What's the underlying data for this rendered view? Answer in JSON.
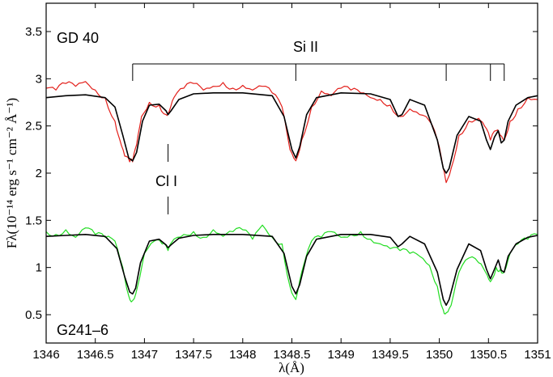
{
  "chart_data": {
    "type": "line",
    "xlabel": "λ(Å)",
    "ylabel": "Fλ(10⁻¹⁴ erg s⁻¹ cm⁻² Å⁻¹)",
    "xlim": [
      1346,
      1351
    ],
    "ylim": [
      0.2,
      3.8
    ],
    "xticks": [
      "1346",
      "1346.5",
      "1347",
      "1347.5",
      "1348",
      "1348.5",
      "1349",
      "1349.5",
      "1350",
      "1350.5",
      "1351"
    ],
    "yticks": [
      "0.5",
      "1",
      "1.5",
      "2",
      "2.5",
      "3",
      "3.5"
    ],
    "grid": false,
    "annotations": {
      "top_star": "GD 40",
      "bottom_star": "G241–6",
      "si_label": "Si II",
      "cl_label": "Cl I"
    },
    "si_lines": [
      1346.88,
      1348.54,
      1350.07,
      1350.52,
      1350.66
    ],
    "cl_line": 1347.24,
    "series": [
      {
        "color": "#e3201b",
        "style": "observed",
        "x": [
          1346.0,
          1346.1,
          1346.2,
          1346.3,
          1346.4,
          1346.5,
          1346.6,
          1346.7,
          1346.75,
          1346.8,
          1346.85,
          1346.88,
          1346.92,
          1346.97,
          1347.05,
          1347.15,
          1347.22,
          1347.25,
          1347.3,
          1347.4,
          1347.5,
          1347.6,
          1347.7,
          1347.8,
          1347.9,
          1348.0,
          1348.1,
          1348.2,
          1348.3,
          1348.4,
          1348.48,
          1348.54,
          1348.6,
          1348.7,
          1348.8,
          1348.9,
          1349.0,
          1349.1,
          1349.2,
          1349.3,
          1349.4,
          1349.5,
          1349.6,
          1349.7,
          1349.8,
          1349.9,
          1349.98,
          1350.04,
          1350.07,
          1350.12,
          1350.2,
          1350.3,
          1350.4,
          1350.46,
          1350.52,
          1350.58,
          1350.62,
          1350.66,
          1350.72,
          1350.8,
          1350.9,
          1351.0
        ],
        "y": [
          2.9,
          2.88,
          2.95,
          2.92,
          2.97,
          2.88,
          2.8,
          2.55,
          2.35,
          2.18,
          2.12,
          2.12,
          2.3,
          2.6,
          2.75,
          2.72,
          2.62,
          2.65,
          2.8,
          2.9,
          2.95,
          2.88,
          2.92,
          2.96,
          2.9,
          2.93,
          2.88,
          2.92,
          2.85,
          2.7,
          2.25,
          2.13,
          2.35,
          2.7,
          2.87,
          2.82,
          2.9,
          2.88,
          2.85,
          2.8,
          2.78,
          2.72,
          2.6,
          2.68,
          2.62,
          2.55,
          2.35,
          2.05,
          1.9,
          2.05,
          2.4,
          2.55,
          2.58,
          2.5,
          2.35,
          2.45,
          2.4,
          2.35,
          2.55,
          2.68,
          2.8,
          2.78
        ]
      },
      {
        "color": "#000000",
        "style": "model",
        "x": [
          1346.0,
          1346.2,
          1346.4,
          1346.6,
          1346.7,
          1346.78,
          1346.84,
          1346.88,
          1346.92,
          1346.98,
          1347.05,
          1347.15,
          1347.22,
          1347.24,
          1347.27,
          1347.35,
          1347.5,
          1347.7,
          1348.0,
          1348.3,
          1348.42,
          1348.5,
          1348.54,
          1348.58,
          1348.65,
          1348.75,
          1349.0,
          1349.3,
          1349.5,
          1349.58,
          1349.62,
          1349.7,
          1349.85,
          1349.98,
          1350.04,
          1350.07,
          1350.1,
          1350.18,
          1350.3,
          1350.42,
          1350.48,
          1350.52,
          1350.56,
          1350.6,
          1350.63,
          1350.66,
          1350.7,
          1350.78,
          1350.9,
          1351.0
        ],
        "y": [
          2.8,
          2.82,
          2.83,
          2.8,
          2.7,
          2.4,
          2.16,
          2.13,
          2.22,
          2.55,
          2.72,
          2.73,
          2.66,
          2.62,
          2.66,
          2.78,
          2.84,
          2.85,
          2.85,
          2.82,
          2.6,
          2.25,
          2.16,
          2.28,
          2.62,
          2.8,
          2.85,
          2.84,
          2.78,
          2.6,
          2.62,
          2.78,
          2.72,
          2.35,
          2.05,
          2.0,
          2.05,
          2.4,
          2.6,
          2.55,
          2.35,
          2.25,
          2.38,
          2.45,
          2.32,
          2.35,
          2.55,
          2.72,
          2.8,
          2.82
        ]
      },
      {
        "color": "#22dd22",
        "style": "observed",
        "x": [
          1346.0,
          1346.1,
          1346.2,
          1346.3,
          1346.4,
          1346.5,
          1346.6,
          1346.7,
          1346.78,
          1346.84,
          1346.88,
          1346.93,
          1347.0,
          1347.1,
          1347.18,
          1347.24,
          1347.3,
          1347.4,
          1347.5,
          1347.6,
          1347.7,
          1347.8,
          1347.9,
          1348.0,
          1348.1,
          1348.2,
          1348.3,
          1348.4,
          1348.48,
          1348.54,
          1348.6,
          1348.7,
          1348.8,
          1348.9,
          1349.0,
          1349.1,
          1349.2,
          1349.3,
          1349.4,
          1349.5,
          1349.6,
          1349.7,
          1349.8,
          1349.9,
          1349.98,
          1350.04,
          1350.07,
          1350.12,
          1350.2,
          1350.3,
          1350.4,
          1350.47,
          1350.52,
          1350.58,
          1350.62,
          1350.66,
          1350.72,
          1350.8,
          1350.9,
          1351.0
        ],
        "y": [
          1.38,
          1.35,
          1.4,
          1.32,
          1.42,
          1.35,
          1.32,
          1.28,
          1.0,
          0.7,
          0.65,
          0.8,
          1.15,
          1.28,
          1.25,
          1.18,
          1.3,
          1.35,
          1.38,
          1.32,
          1.4,
          1.33,
          1.38,
          1.4,
          1.3,
          1.45,
          1.32,
          1.25,
          0.8,
          0.66,
          0.95,
          1.28,
          1.32,
          1.38,
          1.32,
          1.35,
          1.38,
          1.3,
          1.25,
          1.2,
          1.18,
          1.15,
          1.12,
          1.02,
          0.8,
          0.55,
          0.52,
          0.6,
          0.95,
          1.1,
          1.05,
          0.95,
          0.85,
          1.0,
          0.98,
          0.95,
          1.15,
          1.25,
          1.3,
          1.35
        ]
      },
      {
        "color": "#000000",
        "style": "model",
        "x": [
          1346.0,
          1346.2,
          1346.4,
          1346.6,
          1346.72,
          1346.8,
          1346.85,
          1346.88,
          1346.91,
          1346.96,
          1347.05,
          1347.15,
          1347.22,
          1347.24,
          1347.27,
          1347.35,
          1347.5,
          1347.7,
          1348.0,
          1348.3,
          1348.42,
          1348.5,
          1348.54,
          1348.58,
          1348.65,
          1348.75,
          1349.0,
          1349.3,
          1349.5,
          1349.58,
          1349.62,
          1349.7,
          1349.85,
          1349.98,
          1350.04,
          1350.07,
          1350.1,
          1350.18,
          1350.3,
          1350.42,
          1350.48,
          1350.52,
          1350.56,
          1350.6,
          1350.63,
          1350.66,
          1350.7,
          1350.78,
          1350.9,
          1351.0
        ],
        "y": [
          1.33,
          1.34,
          1.35,
          1.33,
          1.2,
          0.9,
          0.74,
          0.72,
          0.78,
          1.05,
          1.28,
          1.3,
          1.24,
          1.21,
          1.24,
          1.31,
          1.34,
          1.35,
          1.35,
          1.33,
          1.15,
          0.8,
          0.72,
          0.82,
          1.12,
          1.3,
          1.35,
          1.35,
          1.32,
          1.22,
          1.25,
          1.33,
          1.25,
          0.95,
          0.66,
          0.6,
          0.66,
          0.98,
          1.25,
          1.18,
          0.98,
          0.88,
          0.98,
          1.08,
          0.97,
          0.95,
          1.12,
          1.25,
          1.32,
          1.34
        ]
      }
    ]
  }
}
